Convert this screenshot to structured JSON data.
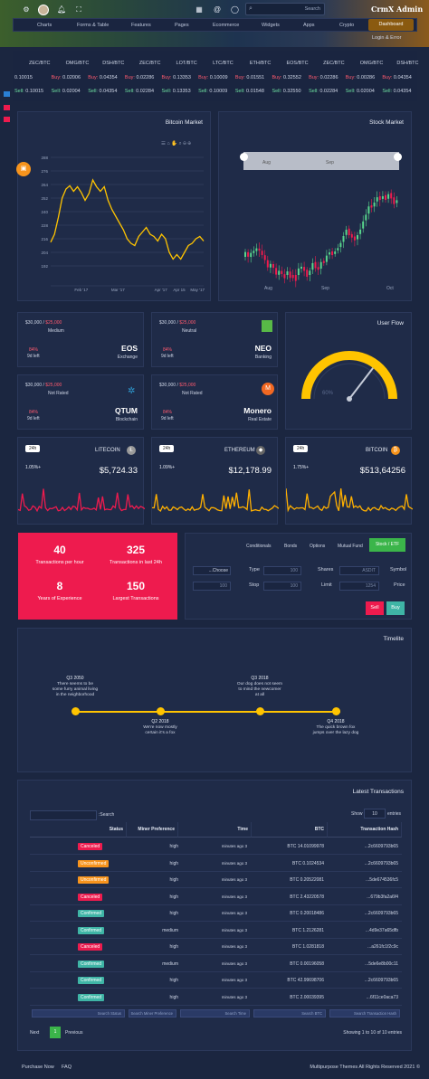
{
  "topbar": {
    "search_label": "Search",
    "brand": "CrmX Admin",
    "menu": [
      "Charts",
      "Forms & Table",
      "Features",
      "Pages",
      "Ecommerce",
      "Widgets",
      "Apps",
      "Crypto"
    ],
    "dashboard_label": "Dashboard",
    "login_label": "Login & Error"
  },
  "ticker": {
    "pairs": [
      "ZEC/BTC",
      "OMG/BTC",
      "DSH/BTC",
      "ZEC/BTC",
      "LOT/BTC",
      "LTC/BTC",
      "ETH/BTC",
      "EOS/BTC",
      "ZEC/BTC",
      "OMG/BTC",
      "DSH/BTC"
    ],
    "row": [
      {
        "type": "",
        "val": "0.10015",
        "cls": ""
      },
      {
        "type": "Buy:",
        "val": "0.02006",
        "cls": "buy"
      },
      {
        "type": "Buy:",
        "val": "0.04354",
        "cls": "buy"
      },
      {
        "type": "Buy:",
        "val": "0.02286",
        "cls": "buy"
      },
      {
        "type": "Buy:",
        "val": "0.13353",
        "cls": "buy"
      },
      {
        "type": "Buy:",
        "val": "0.10009",
        "cls": "buy"
      },
      {
        "type": "Buy:",
        "val": "0.01551",
        "cls": "buy"
      },
      {
        "type": "Buy:",
        "val": "0.32552",
        "cls": "buy"
      },
      {
        "type": "Buy:",
        "val": "0.02286",
        "cls": "buy"
      },
      {
        "type": "Buy:",
        "val": "0.00286",
        "cls": "buy"
      },
      {
        "type": "Buy:",
        "val": "0.04354",
        "cls": "buy"
      }
    ],
    "row2": [
      {
        "type": "Sell:",
        "val": "0.10015",
        "cls": "sell"
      },
      {
        "type": "Sell:",
        "val": "0.02004",
        "cls": "sell"
      },
      {
        "type": "Sell:",
        "val": "0.04354",
        "cls": "sell"
      },
      {
        "type": "Sell:",
        "val": "0.02284",
        "cls": "sell"
      },
      {
        "type": "Sell:",
        "val": "0.13353",
        "cls": "sell"
      },
      {
        "type": "Sell:",
        "val": "0.10009",
        "cls": "sell"
      },
      {
        "type": "Sell:",
        "val": "0.01548",
        "cls": "sell"
      },
      {
        "type": "Sell:",
        "val": "0.32550",
        "cls": "sell"
      },
      {
        "type": "Sell:",
        "val": "0.02284",
        "cls": "sell"
      },
      {
        "type": "Sell:",
        "val": "0.02004",
        "cls": "sell"
      },
      {
        "type": "Sell:",
        "val": "0.04354",
        "cls": "sell"
      }
    ]
  },
  "bitcoin_market": {
    "title": "Bitcoin Market",
    "y_ticks": [
      "288",
      "276",
      "264",
      "252",
      "240",
      "228",
      "216",
      "204",
      "192"
    ],
    "x_ticks": [
      "Feb '17",
      "Mar '17",
      "Apr '17",
      "Apr 15",
      "May '17"
    ],
    "values": [
      213,
      220,
      235,
      252,
      260,
      263,
      258,
      262,
      257,
      250,
      256,
      268,
      262,
      258,
      262,
      250,
      242,
      236,
      230,
      224,
      216,
      212,
      210,
      218,
      222,
      226,
      220,
      218,
      214,
      220,
      216,
      204,
      198,
      202,
      198,
      204,
      210,
      212,
      216,
      218,
      214
    ]
  },
  "stock_market": {
    "title": "Stock Market",
    "navigator_labels": [
      "Aug",
      "Sep"
    ],
    "x_labels": [
      "Aug",
      "Sep",
      "Oct"
    ]
  },
  "coin_cards": [
    {
      "price": "$30,000",
      "red": "$25,000",
      "sub": "Medium",
      "pct": "84%",
      "days": "9d left",
      "name": "EOS",
      "desc": "Exchange"
    },
    {
      "price": "$30,000",
      "red": "$25,000",
      "sub": "Neutral",
      "pct": "84%",
      "days": "9d left",
      "name": "NEO",
      "desc": "Banking"
    },
    {
      "price": "$30,000",
      "red": "$25,000",
      "sub": "Not Rated",
      "pct": "84%",
      "days": "9d left",
      "name": "QTUM",
      "desc": "Blockchain"
    },
    {
      "price": "$30,000",
      "red": "$25,000",
      "sub": "Not Rated",
      "pct": "84%",
      "days": "9d left",
      "name": "Monero",
      "desc": "Real Estate"
    }
  ],
  "user_flow": {
    "title": "User Flow",
    "value_label": "60%",
    "value": 0.6
  },
  "spark_cards": [
    {
      "badge": "24h",
      "name": "LITECOIN",
      "pct": "1.05%+",
      "value": "$5,724.33",
      "color": "#ee1b4e"
    },
    {
      "badge": "24h",
      "name": "ETHEREUM",
      "pct": "1.09%+",
      "value": "$12,178.99",
      "color": "#ffb000"
    },
    {
      "badge": "24h",
      "name": "BITCOIN",
      "pct": "1.75%+",
      "value": "$513,64256",
      "color": "#ffb000"
    }
  ],
  "stats": [
    {
      "num": "40",
      "label": "Transactions per hour"
    },
    {
      "num": "325",
      "label": "Transactions in last 24h"
    },
    {
      "num": "8",
      "label": "Years of Experience"
    },
    {
      "num": "150",
      "label": "Largest Transactions"
    }
  ],
  "trade": {
    "tabs": [
      "Conditionals",
      "Bonds",
      "Options",
      "Mutual Fund",
      "Stock / ETF"
    ],
    "choose_label": "...Choose",
    "type_label": "Type",
    "type_val": "100",
    "shares_label": "Shares",
    "shares_val": "ASDIT",
    "symbol_label": "Symbol",
    "qty_val": "100",
    "stop_label": "Stop",
    "stop_val": "100",
    "limit_label": "Limit",
    "limit_val": "1254",
    "price_label": "Price",
    "sell_label": "Sell",
    "buy_label": "Buy"
  },
  "timeline": {
    "title": "Timelite",
    "events": [
      {
        "date": "Q3 2050",
        "text": "There seems to be some furry animal living in the neighborhood",
        "pos": "top"
      },
      {
        "date": "Q2 2018",
        "text": "We're now mostly certain it's a fox",
        "pos": "bottom"
      },
      {
        "date": "Q3 2018",
        "text": "Our dog does not seem to mind the newcomer at all",
        "pos": "top"
      },
      {
        "date": "Q4 2018",
        "text": "The quick brown fox jumps over the lazy dog",
        "pos": "bottom"
      }
    ]
  },
  "transactions": {
    "title": "Latest Transactions",
    "search_label": ":Search",
    "show_label": "Show",
    "show_val": "10",
    "entries_label": "entries",
    "headers": [
      "Status",
      "Miner Preference",
      "Time",
      "BTC",
      "Transaction Hash"
    ],
    "rows": [
      {
        "status": "Canceled",
        "color": "#ee1b4e",
        "pref": "high",
        "time": "minutes ago 3",
        "btc": "BTC 14.01099978",
        "hash": "...2c6609793b65"
      },
      {
        "status": "Unconfirmed",
        "color": "#f7941d",
        "pref": "high",
        "time": "minutes ago 3",
        "btc": "BTC 0.1024534",
        "hash": "...2c6609793b65"
      },
      {
        "status": "Unconfirmed",
        "color": "#f7941d",
        "pref": "high",
        "time": "minutes ago 3",
        "btc": "BTC 0.20522081",
        "hash": "...5de674536fc5"
      },
      {
        "status": "Canceled",
        "color": "#ee1b4e",
        "pref": "high",
        "time": "minutes ago 3",
        "btc": "BTC 2.43220578",
        "hash": "...679b3fa2a6f4"
      },
      {
        "status": "Confirmed",
        "color": "#3fb5a6",
        "pref": "high",
        "time": "minutes ago 3",
        "btc": "BTC 0.20018486",
        "hash": "...2c6609793b65"
      },
      {
        "status": "Confirmed",
        "color": "#3fb5a6",
        "pref": "medium",
        "time": "minutes ago 3",
        "btc": "BTC 1.2126281",
        "hash": "...4d9e37a65dfb"
      },
      {
        "status": "Canceled",
        "color": "#ee1b4e",
        "pref": "high",
        "time": "minutes ago 3",
        "btc": "BTC 1.0281818",
        "hash": "...a261fc1f2c9c"
      },
      {
        "status": "Confirmed",
        "color": "#3fb5a6",
        "pref": "medium",
        "time": "minutes ago 3",
        "btc": "BTC 0.00196058",
        "hash": "...5de6e8b00c11"
      },
      {
        "status": "Confirmed",
        "color": "#3fb5a6",
        "pref": "high",
        "time": "minutes ago 3",
        "btc": "BTC 42.99698706",
        "hash": "...2c6609793b65"
      },
      {
        "status": "Confirmed",
        "color": "#3fb5a6",
        "pref": "high",
        "time": "minutes ago 3",
        "btc": "BTC 2.00039395",
        "hash": "...6f11ce0aca73"
      }
    ],
    "filters": [
      "Search Status",
      "Search Miner Preference",
      "Search Time",
      "Search BTC",
      "Search Transaction Hash"
    ],
    "next_label": "Next",
    "page": "1",
    "prev_label": "Previous",
    "showing": "Showing 1 to 10 of 10 entries"
  },
  "footer": {
    "links": [
      "Purchase Now",
      "FAQ"
    ],
    "copyright": "Multipurpose Themes All Rights Reserved 2021 ©"
  }
}
